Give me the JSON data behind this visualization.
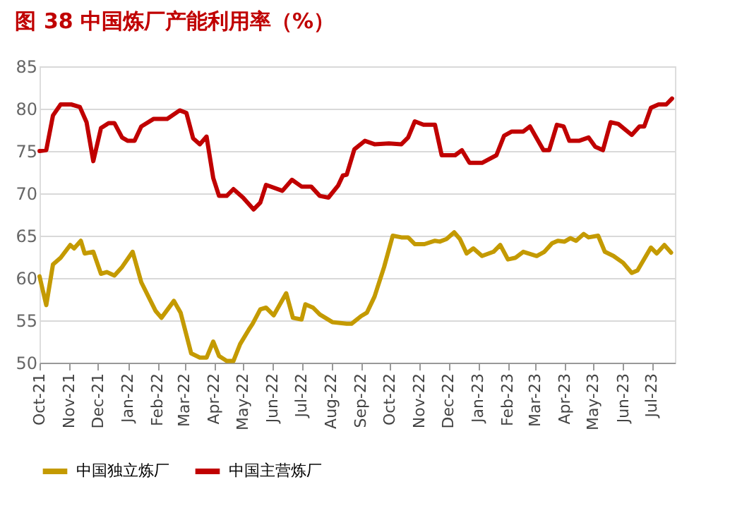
{
  "chart_data": {
    "type": "line",
    "title": "图 38   中国炼厂产能利用率（%）",
    "ylim": [
      50,
      85
    ],
    "yticks": [
      50,
      55,
      60,
      65,
      70,
      75,
      80,
      85
    ],
    "xlim": [
      "2021-10-01",
      "2023-07-25"
    ],
    "xticks": [
      {
        "value": "2021-10-01",
        "label": "Oct-21"
      },
      {
        "value": "2021-11-01",
        "label": "Nov-21"
      },
      {
        "value": "2021-12-01",
        "label": "Dec-21"
      },
      {
        "value": "2022-01-01",
        "label": "Jan-22"
      },
      {
        "value": "2022-02-01",
        "label": "Feb-22"
      },
      {
        "value": "2022-03-01",
        "label": "Mar-22"
      },
      {
        "value": "2022-04-01",
        "label": "Apr-22"
      },
      {
        "value": "2022-05-01",
        "label": "May-22"
      },
      {
        "value": "2022-06-01",
        "label": "Jun-22"
      },
      {
        "value": "2022-07-01",
        "label": "Jul-22"
      },
      {
        "value": "2022-08-01",
        "label": "Aug-22"
      },
      {
        "value": "2022-09-01",
        "label": "Sep-22"
      },
      {
        "value": "2022-10-01",
        "label": "Oct-22"
      },
      {
        "value": "2022-11-01",
        "label": "Nov-22"
      },
      {
        "value": "2022-12-01",
        "label": "Dec-22"
      },
      {
        "value": "2023-01-01",
        "label": "Jan-23"
      },
      {
        "value": "2023-02-01",
        "label": "Feb-23"
      },
      {
        "value": "2023-03-01",
        "label": "Mar-23"
      },
      {
        "value": "2023-04-01",
        "label": "Apr-23"
      },
      {
        "value": "2023-05-01",
        "label": "May-23"
      },
      {
        "value": "2023-06-01",
        "label": "Jun-23"
      },
      {
        "value": "2023-07-01",
        "label": "Jul-23"
      }
    ],
    "grid": "y",
    "legend": "bottom",
    "marker": "none",
    "line_style": "solid",
    "series": [
      {
        "name": "中国独立炼厂",
        "color": "#c49a00",
        "x": [
          "2021-10-01",
          "2021-10-08",
          "2021-10-15",
          "2021-10-23",
          "2021-11-02",
          "2021-11-06",
          "2021-11-13",
          "2021-11-17",
          "2021-11-26",
          "2021-12-04",
          "2021-12-10",
          "2021-12-18",
          "2021-12-26",
          "2022-01-06",
          "2022-01-15",
          "2022-01-30",
          "2022-02-05",
          "2022-02-18",
          "2022-02-25",
          "2022-03-08",
          "2022-03-17",
          "2022-03-24",
          "2022-03-31",
          "2022-04-06",
          "2022-04-14",
          "2022-04-21",
          "2022-04-28",
          "2022-05-07",
          "2022-05-11",
          "2022-05-19",
          "2022-05-25",
          "2022-06-02",
          "2022-06-15",
          "2022-06-22",
          "2022-07-01",
          "2022-07-05",
          "2022-07-13",
          "2022-07-20",
          "2022-08-02",
          "2022-08-17",
          "2022-08-22",
          "2022-09-01",
          "2022-09-07",
          "2022-09-15",
          "2022-09-25",
          "2022-10-04",
          "2022-10-13",
          "2022-10-20",
          "2022-10-27",
          "2022-11-06",
          "2022-11-17",
          "2022-11-22",
          "2022-11-29",
          "2022-12-07",
          "2022-12-13",
          "2022-12-20",
          "2022-12-27",
          "2023-01-05",
          "2023-01-17",
          "2023-01-24",
          "2023-02-01",
          "2023-02-09",
          "2023-02-17",
          "2023-03-03",
          "2023-03-11",
          "2023-03-19",
          "2023-03-25",
          "2023-04-01",
          "2023-04-07",
          "2023-04-13",
          "2023-04-21",
          "2023-04-26",
          "2023-05-06",
          "2023-05-13",
          "2023-05-22",
          "2023-06-01",
          "2023-06-10",
          "2023-06-16",
          "2023-06-30",
          "2023-07-06",
          "2023-07-14",
          "2023-07-21"
        ],
        "values": [
          60.2,
          56.8,
          61.6,
          62.4,
          63.9,
          63.5,
          64.4,
          62.9,
          63.1,
          60.5,
          60.7,
          60.3,
          61.3,
          63.1,
          59.5,
          56.1,
          55.3,
          57.3,
          55.9,
          51.1,
          50.6,
          50.6,
          52.5,
          50.8,
          50.2,
          50.2,
          52.2,
          53.9,
          54.6,
          56.3,
          56.5,
          55.6,
          58.2,
          55.3,
          55.1,
          56.9,
          56.5,
          55.7,
          54.8,
          54.6,
          54.6,
          55.5,
          55.9,
          57.8,
          61.3,
          65.0,
          64.8,
          64.8,
          64.0,
          64.0,
          64.4,
          64.3,
          64.6,
          65.4,
          64.6,
          62.9,
          63.5,
          62.6,
          63.1,
          63.9,
          62.2,
          62.4,
          63.1,
          62.6,
          63.1,
          64.1,
          64.4,
          64.3,
          64.7,
          64.4,
          65.2,
          64.8,
          65.0,
          63.1,
          62.6,
          61.8,
          60.6,
          60.9,
          63.6,
          62.9,
          63.9,
          63.0
        ]
      },
      {
        "name": "中国主营炼厂",
        "color": "#c00000",
        "x": [
          "2021-10-01",
          "2021-10-08",
          "2021-10-15",
          "2021-10-23",
          "2021-11-03",
          "2021-11-12",
          "2021-11-19",
          "2021-11-26",
          "2021-12-04",
          "2021-12-12",
          "2021-12-18",
          "2021-12-26",
          "2022-01-01",
          "2022-01-08",
          "2022-01-15",
          "2022-01-28",
          "2022-02-11",
          "2022-02-24",
          "2022-03-03",
          "2022-03-10",
          "2022-03-17",
          "2022-03-24",
          "2022-03-31",
          "2022-04-06",
          "2022-04-14",
          "2022-04-21",
          "2022-05-01",
          "2022-05-12",
          "2022-05-19",
          "2022-05-25",
          "2022-06-11",
          "2022-06-21",
          "2022-07-01",
          "2022-07-11",
          "2022-07-20",
          "2022-07-29",
          "2022-08-08",
          "2022-08-13",
          "2022-08-17",
          "2022-08-25",
          "2022-09-05",
          "2022-09-15",
          "2022-09-30",
          "2022-10-13",
          "2022-10-20",
          "2022-10-27",
          "2022-11-05",
          "2022-11-17",
          "2022-11-24",
          "2022-12-08",
          "2022-12-15",
          "2022-12-23",
          "2023-01-05",
          "2023-01-20",
          "2023-01-28",
          "2023-02-05",
          "2023-02-17",
          "2023-02-24",
          "2023-03-01",
          "2023-03-10",
          "2023-03-16",
          "2023-03-24",
          "2023-03-31",
          "2023-04-06",
          "2023-04-16",
          "2023-04-26",
          "2023-05-03",
          "2023-05-11",
          "2023-05-19",
          "2023-05-27",
          "2023-06-10",
          "2023-06-18",
          "2023-06-23",
          "2023-06-30",
          "2023-07-08",
          "2023-07-16",
          "2023-07-22"
        ],
        "values": [
          75.0,
          75.1,
          79.2,
          80.5,
          80.5,
          80.2,
          78.4,
          73.8,
          77.7,
          78.3,
          78.3,
          76.6,
          76.2,
          76.2,
          77.9,
          78.8,
          78.8,
          79.8,
          79.5,
          76.5,
          75.8,
          76.7,
          71.8,
          69.7,
          69.7,
          70.5,
          69.5,
          68.1,
          68.9,
          71.0,
          70.3,
          71.6,
          70.8,
          70.8,
          69.7,
          69.5,
          70.9,
          72.1,
          72.2,
          75.2,
          76.2,
          75.8,
          75.9,
          75.8,
          76.6,
          78.5,
          78.1,
          78.1,
          74.5,
          74.5,
          75.1,
          73.6,
          73.6,
          74.5,
          76.8,
          77.3,
          77.3,
          77.9,
          76.9,
          75.1,
          75.1,
          78.1,
          77.9,
          76.2,
          76.2,
          76.6,
          75.5,
          75.1,
          78.4,
          78.2,
          76.9,
          77.9,
          77.9,
          80.1,
          80.5,
          80.5,
          81.2
        ]
      }
    ]
  }
}
